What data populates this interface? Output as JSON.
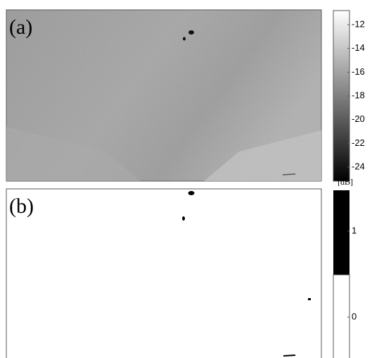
{
  "panels": [
    {
      "label": "(a)",
      "colorbar": {
        "ticks": [
          -12,
          -14,
          -16,
          -18,
          -20,
          -22,
          -24
        ],
        "unit": "[dB]"
      }
    },
    {
      "label": "(b)",
      "colorbar": {
        "ticks": [
          1,
          0
        ]
      }
    }
  ]
}
